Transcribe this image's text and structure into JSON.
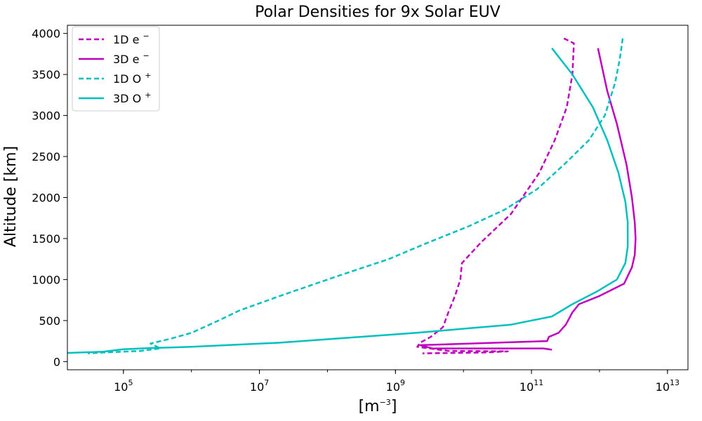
{
  "chart_data": {
    "type": "line",
    "title": "Polar Densities for 9x Solar EUV",
    "xlabel": "[m",
    "xlabel_sup": "−3",
    "xlabel_end": "]",
    "ylabel": "Altitude [km]",
    "x_scale": "log",
    "xlim": [
      15000,
      20000000000000
    ],
    "ylim": [
      -100,
      4100
    ],
    "x_ticks": [
      {
        "value": 100000,
        "base": "10",
        "exp": "5"
      },
      {
        "value": 10000000,
        "base": "10",
        "exp": "7"
      },
      {
        "value": 1000000000,
        "base": "10",
        "exp": "9"
      },
      {
        "value": 100000000000,
        "base": "10",
        "exp": "11"
      },
      {
        "value": 10000000000000,
        "base": "10",
        "exp": "13"
      }
    ],
    "y_ticks": [
      0,
      500,
      1000,
      1500,
      2000,
      2500,
      3000,
      3500,
      4000
    ],
    "grid": false,
    "legend_position": "top-left",
    "series": [
      {
        "name_base": "1D e",
        "name_sup": "−",
        "color": "#bf00bf",
        "style": "dashed",
        "points": [
          [
            300000000000.0,
            3940
          ],
          [
            420000000000.0,
            3880
          ],
          [
            400000000000.0,
            3500
          ],
          [
            330000000000.0,
            3100
          ],
          [
            220000000000.0,
            2700
          ],
          [
            130000000000.0,
            2300
          ],
          [
            50000000000.0,
            1800
          ],
          [
            18000000000.0,
            1450
          ],
          [
            9500000000.0,
            1200
          ],
          [
            9000000000.0,
            1000
          ],
          [
            7500000000.0,
            800
          ],
          [
            6000000000.0,
            600
          ],
          [
            5000000000.0,
            420
          ],
          [
            3300000000.0,
            300
          ],
          [
            2300000000.0,
            230
          ],
          [
            2100000000.0,
            180
          ],
          [
            6000000000.0,
            130
          ],
          [
            45000000000.0,
            125
          ],
          [
            20000000000.0,
            110
          ],
          [
            2500000000.0,
            100
          ]
        ]
      },
      {
        "name_base": "3D e",
        "name_sup": "−",
        "color": "#bf00bf",
        "style": "solid",
        "points": [
          [
            950000000000.0,
            3820
          ],
          [
            1300000000000.0,
            3300
          ],
          [
            1800000000000.0,
            2900
          ],
          [
            2500000000000.0,
            2400
          ],
          [
            3000000000000.0,
            2000
          ],
          [
            3300000000000.0,
            1700
          ],
          [
            3400000000000.0,
            1500
          ],
          [
            3300000000000.0,
            1300
          ],
          [
            3000000000000.0,
            1150
          ],
          [
            2300000000000.0,
            950
          ],
          [
            1000000000000.0,
            800
          ],
          [
            500000000000.0,
            700
          ],
          [
            400000000000.0,
            600
          ],
          [
            320000000000.0,
            450
          ],
          [
            250000000000.0,
            350
          ],
          [
            180000000000.0,
            300
          ],
          [
            170000000000.0,
            250
          ],
          [
            2300000000.0,
            200
          ],
          [
            3500000000.0,
            160
          ],
          [
            150000000000.0,
            160
          ],
          [
            200000000000.0,
            145
          ]
        ]
      },
      {
        "name_base": "1D O",
        "name_sup": "+",
        "color": "#00bfbf",
        "style": "dashed",
        "points": [
          [
            2200000000000.0,
            3940
          ],
          [
            2000000000000.0,
            3700
          ],
          [
            1700000000000.0,
            3400
          ],
          [
            1200000000000.0,
            3000
          ],
          [
            700000000000.0,
            2700
          ],
          [
            300000000000.0,
            2400
          ],
          [
            120000000000.0,
            2100
          ],
          [
            40000000000.0,
            1850
          ],
          [
            12000000000.0,
            1650
          ],
          [
            3000000000.0,
            1450
          ],
          [
            800000000.0,
            1250
          ],
          [
            150000000.0,
            1050
          ],
          [
            20000000.0,
            800
          ],
          [
            5000000.0,
            620
          ],
          [
            2500000.0,
            500
          ],
          [
            1000000.0,
            350
          ],
          [
            500000.0,
            280
          ],
          [
            250000.0,
            220
          ],
          [
            350000.0,
            160
          ],
          [
            180000.0,
            130
          ],
          [
            50000.0,
            110
          ],
          [
            30000.0,
            100
          ]
        ]
      },
      {
        "name_base": "3D O",
        "name_sup": "+",
        "color": "#00bfbf",
        "style": "solid",
        "points": [
          [
            200000000000.0,
            3820
          ],
          [
            400000000000.0,
            3500
          ],
          [
            800000000000.0,
            3100
          ],
          [
            1300000000000.0,
            2700
          ],
          [
            1900000000000.0,
            2300
          ],
          [
            2400000000000.0,
            1950
          ],
          [
            2600000000000.0,
            1700
          ],
          [
            2600000000000.0,
            1400
          ],
          [
            2400000000000.0,
            1200
          ],
          [
            1800000000000.0,
            1000
          ],
          [
            900000000000.0,
            850
          ],
          [
            400000000000.0,
            700
          ],
          [
            200000000000.0,
            550
          ],
          [
            50000000000.0,
            450
          ],
          [
            10000000000.0,
            400
          ],
          [
            2000000000.0,
            350
          ],
          [
            200000000.0,
            290
          ],
          [
            20000000.0,
            230
          ],
          [
            1000000.0,
            180
          ],
          [
            250000.0,
            165
          ],
          [
            100000.0,
            150
          ],
          [
            50000.0,
            120
          ],
          [
            15000.0,
            105
          ]
        ]
      }
    ]
  }
}
